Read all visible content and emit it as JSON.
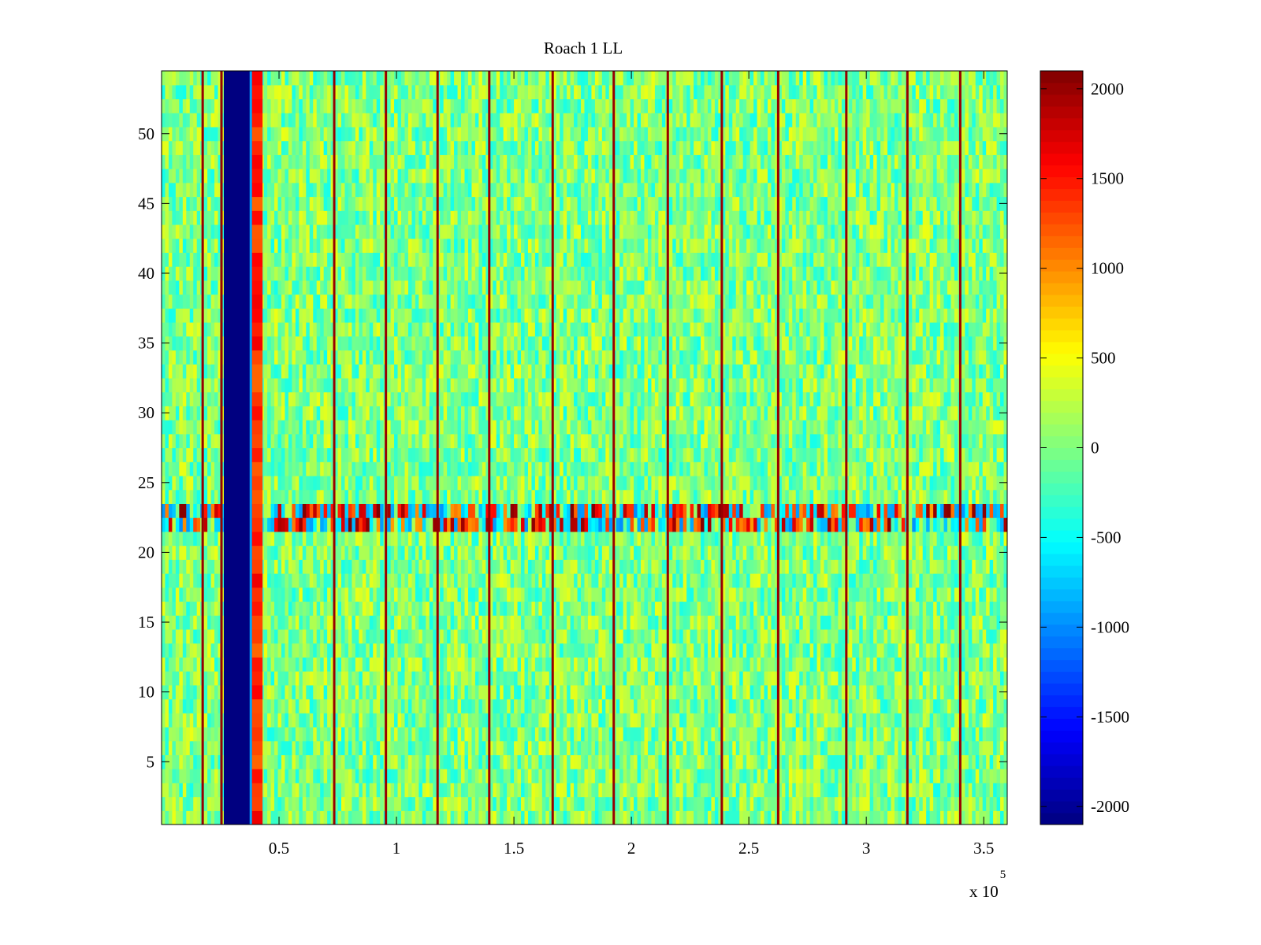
{
  "chart_data": {
    "type": "heatmap",
    "title": "Roach 1 LL",
    "xlabel": "",
    "ylabel": "",
    "x_range": [
      0,
      360000
    ],
    "y_range": [
      0.5,
      54.5
    ],
    "x_ticks": [
      50000,
      100000,
      150000,
      200000,
      250000,
      300000,
      350000
    ],
    "x_tick_labels": [
      "0.5",
      "1",
      "1.5",
      "2",
      "2.5",
      "3",
      "3.5"
    ],
    "x_exponent_label": "x 10",
    "x_exponent_power": "5",
    "y_ticks": [
      5,
      10,
      15,
      20,
      25,
      30,
      35,
      40,
      45,
      50
    ],
    "y_tick_labels": [
      "5",
      "10",
      "15",
      "20",
      "25",
      "30",
      "35",
      "40",
      "45",
      "50"
    ],
    "color_range": [
      -2100,
      2100
    ],
    "colorbar_ticks": [
      2000,
      1500,
      1000,
      500,
      0,
      -500,
      -1000,
      -1500,
      -2000
    ],
    "colorbar_tick_labels": [
      "2000",
      "1500",
      "1000",
      "500",
      "0",
      "-500",
      "-1000",
      "-1500",
      "-2000"
    ],
    "colormap": "jet",
    "background_level": 0,
    "features": {
      "low_value_band": {
        "x_start": 26500,
        "x_end": 38500,
        "value": -2100
      },
      "high_edge_band": {
        "x_start": 38500,
        "x_end": 43000,
        "value": 1400
      },
      "spike_lines_x": [
        17500,
        25500,
        73500,
        95500,
        117500,
        139500,
        166500,
        192500,
        215500,
        238500,
        262500,
        291500,
        317500,
        340000
      ],
      "spike_line_value": 2000,
      "noisy_rows": {
        "y_start": 21.5,
        "y_end": 23.5,
        "min_value": -1000,
        "max_value": 2100
      }
    }
  }
}
